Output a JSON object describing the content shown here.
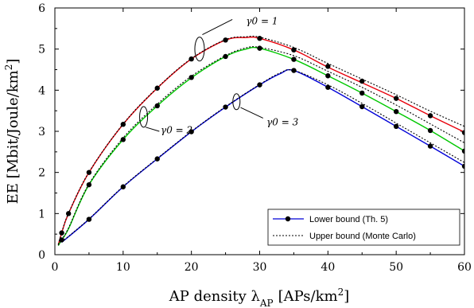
{
  "chart_data": {
    "type": "line",
    "xlabel": "AP density λ",
    "xlabel_sub": "AP",
    "xlabel_unit": "[APs/km",
    "xlabel_unit_sup": "2",
    "xlabel_unit_close": "]",
    "ylabel": "EE [Mbit/Joule/km",
    "ylabel_sup": "2",
    "ylabel_close": "]",
    "xlim": [
      0,
      60
    ],
    "ylim": [
      0,
      6
    ],
    "xticks": [
      "0",
      "10",
      "20",
      "30",
      "40",
      "50",
      "60"
    ],
    "yticks": [
      "0",
      "1",
      "2",
      "3",
      "4",
      "5",
      "6"
    ],
    "grid": false,
    "legend_position": "bottom-right",
    "legend": [
      {
        "label": "Lower bound (Th. 5)",
        "style": "solid-marker"
      },
      {
        "label": "Upper bound (Monte Carlo)",
        "style": "dotted"
      }
    ],
    "annotations": [
      {
        "text": "γ0 = 1",
        "x": 28,
        "y": 5.6
      },
      {
        "text": "γ0 = 2",
        "x": 15.5,
        "y": 2.95
      },
      {
        "text": "γ0 = 3",
        "x": 31,
        "y": 3.15
      }
    ],
    "series": [
      {
        "color": "#e8000b",
        "lower": {
          "x": [
            0.5,
            1,
            2,
            5,
            10,
            15,
            20,
            25,
            28,
            30,
            35,
            40,
            45,
            50,
            55,
            60
          ],
          "y": [
            0.24,
            0.53,
            1.0,
            2.0,
            3.17,
            4.05,
            4.76,
            5.22,
            5.28,
            5.26,
            4.98,
            4.56,
            4.18,
            3.8,
            3.38,
            2.98
          ]
        },
        "upper": {
          "x": [
            0.5,
            1,
            2,
            5,
            10,
            15,
            20,
            25,
            28,
            30,
            35,
            40,
            45,
            50,
            55,
            60
          ],
          "y": [
            0.25,
            0.54,
            1.01,
            2.01,
            3.18,
            4.06,
            4.77,
            5.23,
            5.3,
            5.29,
            5.04,
            4.65,
            4.27,
            3.89,
            3.49,
            3.12
          ]
        },
        "markers": {
          "x": [
            1,
            2,
            5,
            10,
            15,
            20,
            25,
            30,
            35,
            40,
            45,
            50,
            55,
            60
          ],
          "y": [
            0.53,
            1.0,
            2.0,
            3.17,
            4.05,
            4.76,
            5.22,
            5.26,
            4.98,
            4.58,
            4.22,
            3.8,
            3.38,
            2.97
          ]
        }
      },
      {
        "color": "#00c800",
        "lower": {
          "x": [
            0.5,
            1,
            2,
            5,
            10,
            15,
            20,
            25,
            28,
            30,
            35,
            40,
            45,
            50,
            55,
            60
          ],
          "y": [
            0.22,
            0.36,
            0.63,
            1.7,
            2.8,
            3.62,
            4.3,
            4.82,
            5.0,
            5.02,
            4.75,
            4.35,
            3.93,
            3.48,
            3.02,
            2.52
          ]
        },
        "upper": {
          "x": [
            0.5,
            1,
            2,
            5,
            10,
            15,
            20,
            25,
            28,
            30,
            35,
            40,
            45,
            50,
            55,
            60
          ],
          "y": [
            0.23,
            0.37,
            0.65,
            1.72,
            2.84,
            3.66,
            4.34,
            4.84,
            5.03,
            5.04,
            4.84,
            4.46,
            4.07,
            3.64,
            3.18,
            2.72
          ]
        },
        "markers": {
          "x": [
            1,
            5,
            10,
            15,
            20,
            25,
            30,
            35,
            40,
            45,
            50,
            55,
            60
          ],
          "y": [
            0.36,
            1.7,
            2.8,
            3.62,
            4.31,
            4.82,
            5.02,
            4.75,
            4.35,
            3.93,
            3.48,
            3.02,
            2.52
          ]
        }
      },
      {
        "color": "#0000d8",
        "lower": {
          "x": [
            1,
            5,
            10,
            15,
            20,
            25,
            30,
            33,
            35,
            40,
            45,
            50,
            55,
            60
          ],
          "y": [
            0.3,
            0.86,
            1.65,
            2.33,
            2.99,
            3.59,
            4.13,
            4.4,
            4.48,
            4.07,
            3.6,
            3.12,
            2.64,
            2.15
          ]
        },
        "upper": {
          "x": [
            1,
            5,
            10,
            15,
            20,
            25,
            30,
            33,
            35,
            40,
            45,
            50,
            55,
            60
          ],
          "y": [
            0.31,
            0.87,
            1.66,
            2.34,
            3.0,
            3.6,
            4.14,
            4.42,
            4.48,
            4.13,
            3.68,
            3.2,
            2.72,
            2.24
          ]
        },
        "markers": {
          "x": [
            5,
            10,
            15,
            20,
            25,
            30,
            35,
            40,
            45,
            50,
            55,
            60
          ],
          "y": [
            0.86,
            1.65,
            2.33,
            2.99,
            3.59,
            4.13,
            4.48,
            4.07,
            3.6,
            3.12,
            2.64,
            2.15
          ]
        }
      }
    ]
  }
}
